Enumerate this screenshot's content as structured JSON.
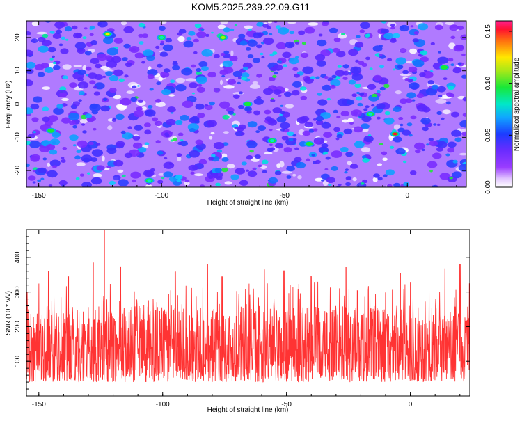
{
  "title": "KOM5.2025.239.22.09.G11",
  "chart_data": [
    {
      "type": "heatmap",
      "xlabel": "Height of straight line (km)",
      "ylabel": "Frequency (Hz)",
      "xlim": [
        -155,
        24
      ],
      "ylim": [
        -25,
        25
      ],
      "x_ticks": [
        -150,
        -100,
        -50,
        0
      ],
      "y_ticks": [
        -20,
        -10,
        0,
        10,
        20
      ],
      "colorbar": {
        "label": "Normalized spectral amplitude",
        "range": [
          0.0,
          0.16
        ],
        "ticks": [
          0.0,
          0.05,
          0.1,
          0.15
        ],
        "tick_labels": [
          "0.00",
          "0.05",
          "0.10",
          "0.15"
        ],
        "colormap": "rainbow (white-violet-blue-cyan-green-yellow-red-magenta)"
      },
      "peaks": [
        {
          "x": -5,
          "y": -9,
          "value": 0.16
        },
        {
          "x": -122,
          "y": 21,
          "value": 0.13
        },
        {
          "x": -75,
          "y": 20,
          "value": 0.11
        },
        {
          "x": -65,
          "y": 0,
          "value": 0.1
        },
        {
          "x": -145,
          "y": -8,
          "value": 0.09
        },
        {
          "x": -40,
          "y": -12,
          "value": 0.09
        },
        {
          "x": 15,
          "y": 11,
          "value": 0.09
        },
        {
          "x": -105,
          "y": -23,
          "value": 0.08
        },
        {
          "x": -100,
          "y": 20,
          "value": 0.08
        },
        {
          "x": -55,
          "y": -11,
          "value": 0.08
        },
        {
          "x": -15,
          "y": -3,
          "value": 0.07
        }
      ]
    },
    {
      "type": "line",
      "xlabel": "Height of straight line (km)",
      "ylabel": "SNR (10 * v/v)",
      "xlim": [
        -155,
        24
      ],
      "ylim": [
        0,
        480
      ],
      "x_ticks": [
        -150,
        -100,
        -50,
        0
      ],
      "y_ticks": [
        100,
        200,
        300,
        400
      ],
      "color": "#ff3333",
      "baseline_range": [
        40,
        260
      ],
      "peaks": [
        {
          "x": -123.5,
          "y": 478
        },
        {
          "x": -128,
          "y": 385
        },
        {
          "x": -82,
          "y": 380
        },
        {
          "x": 20,
          "y": 380
        },
        {
          "x": -117,
          "y": 373
        },
        {
          "x": -26,
          "y": 372
        },
        {
          "x": 14,
          "y": 368
        },
        {
          "x": -59,
          "y": 365
        },
        {
          "x": -146,
          "y": 360
        },
        {
          "x": -95,
          "y": 358
        },
        {
          "x": -51,
          "y": 362
        },
        {
          "x": -4,
          "y": 355
        },
        {
          "x": -138,
          "y": 345
        },
        {
          "x": -76,
          "y": 344
        },
        {
          "x": -40,
          "y": 345
        }
      ]
    }
  ]
}
